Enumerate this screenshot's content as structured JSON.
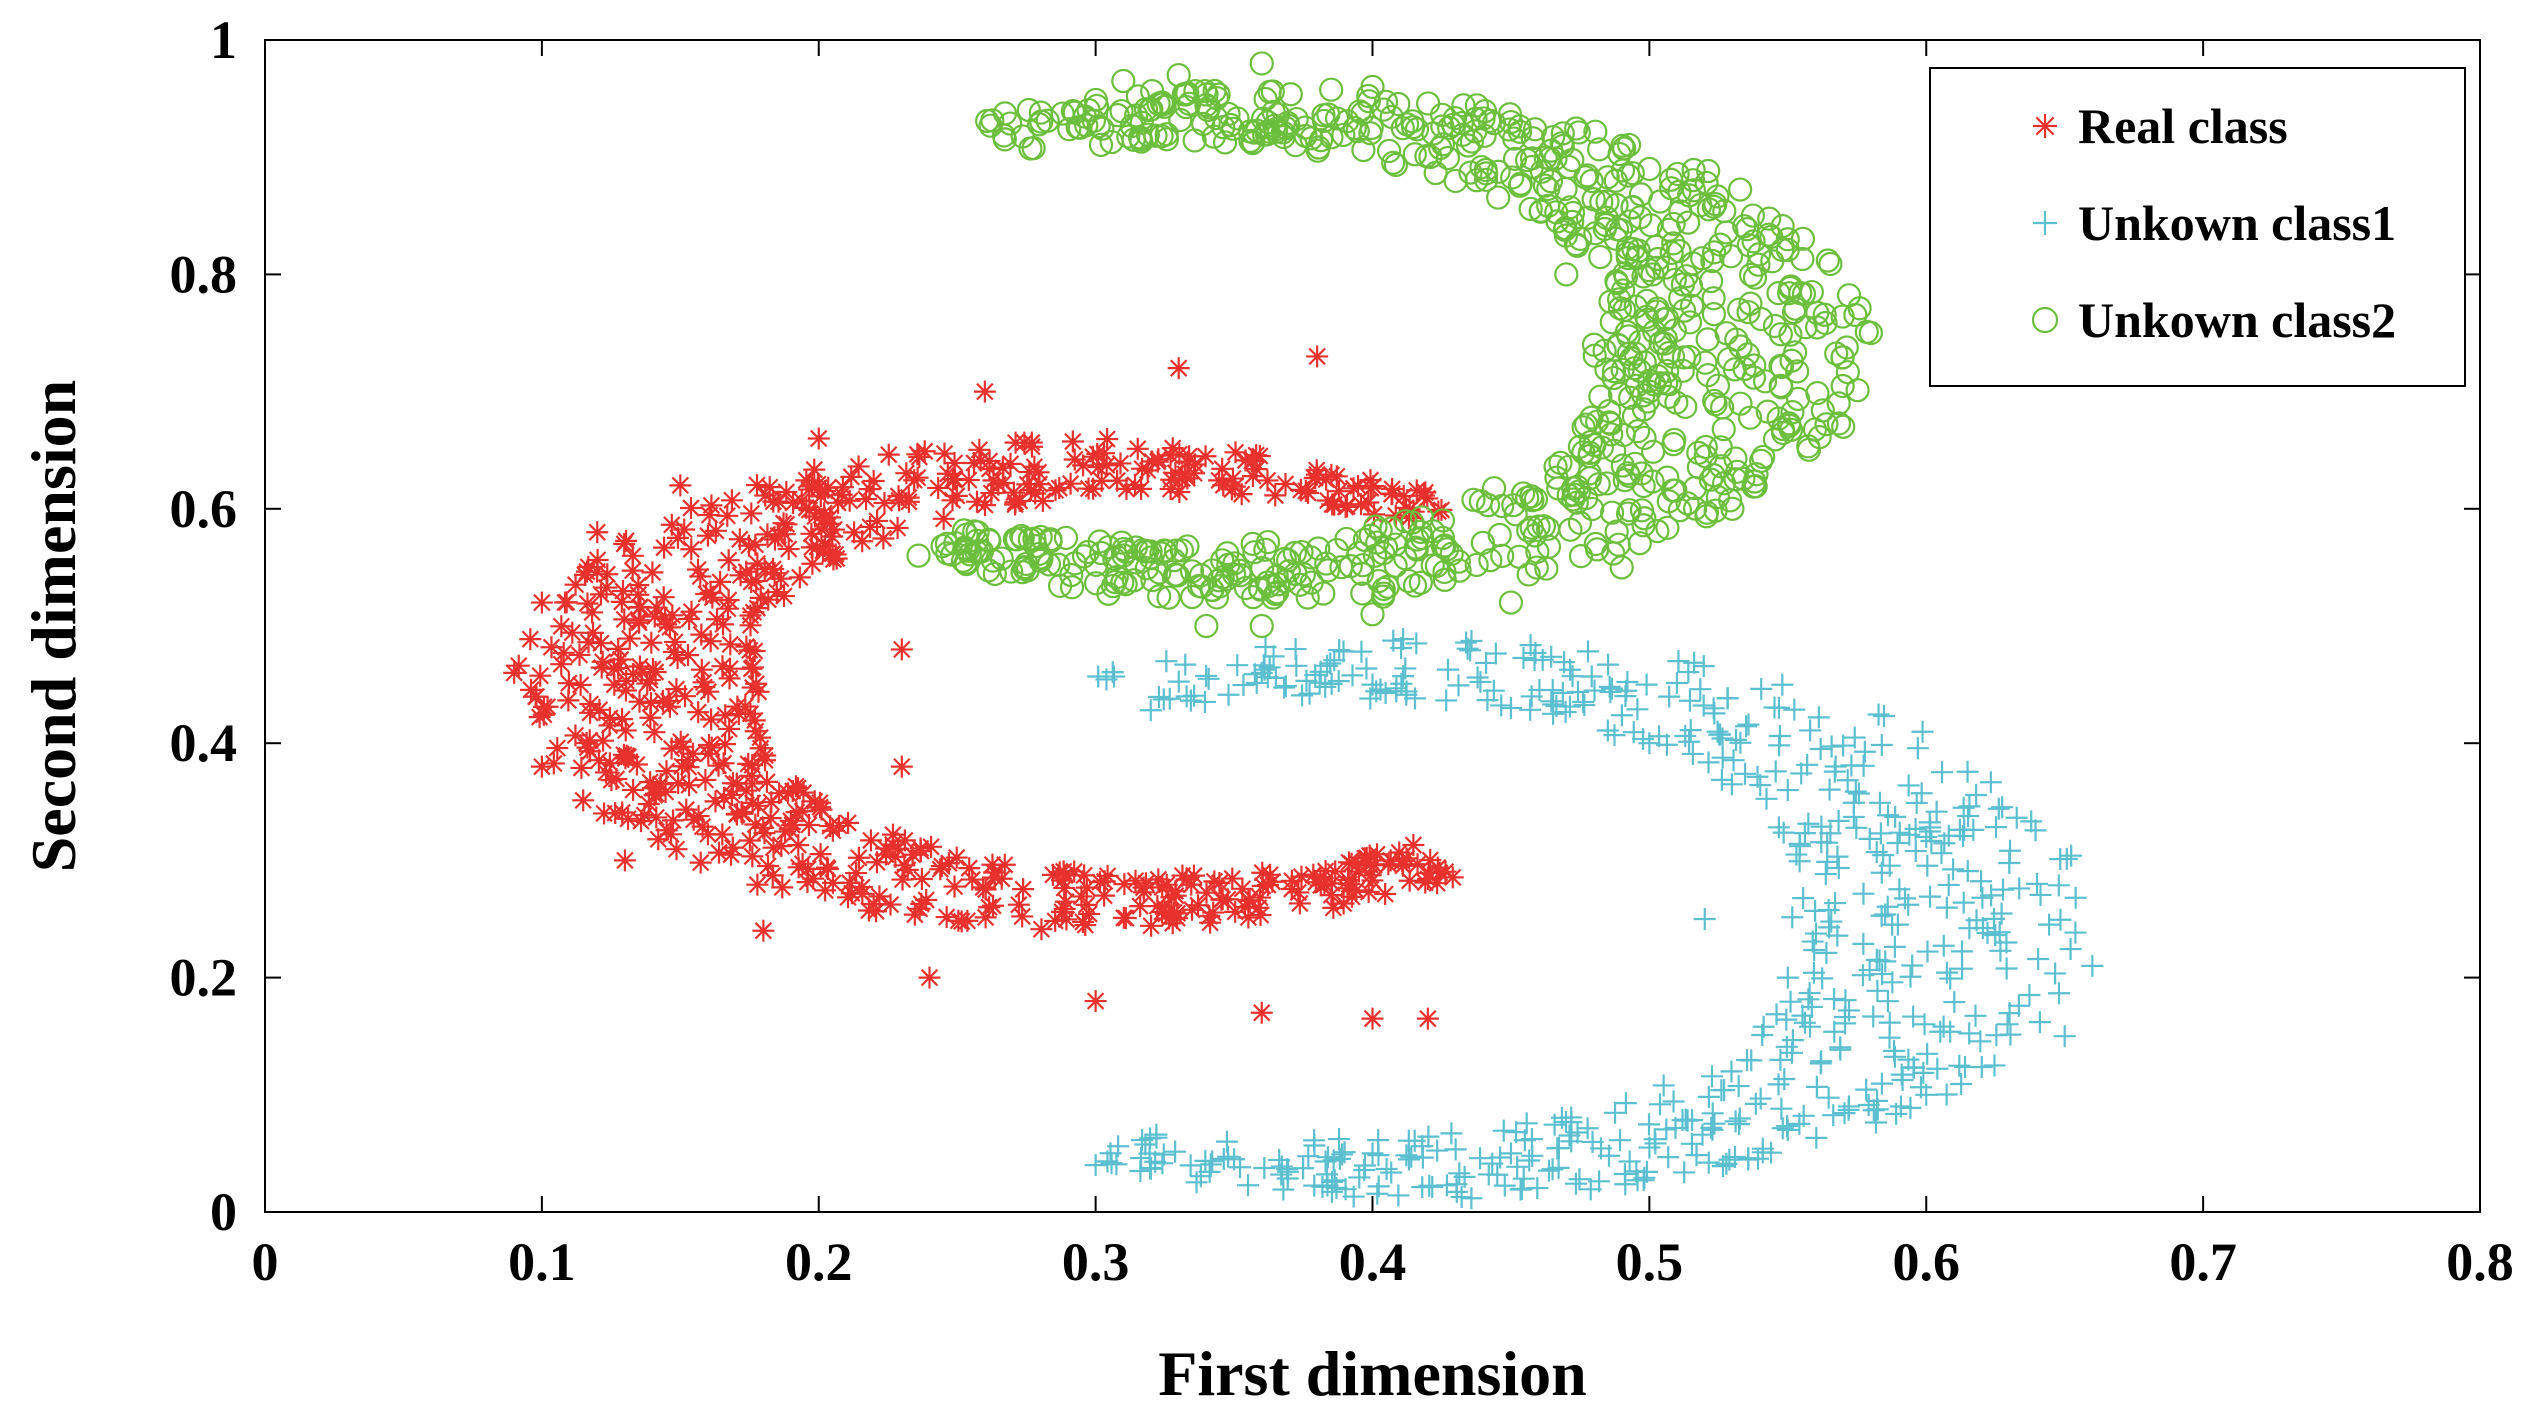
{
  "chart_data": {
    "type": "scatter",
    "title": "",
    "xlabel": "First dimension",
    "ylabel": "Second dimension",
    "xlim": [
      0,
      0.8
    ],
    "ylim": [
      0,
      1
    ],
    "xticks": [
      0,
      0.1,
      0.2,
      0.3,
      0.4,
      0.5,
      0.6,
      0.7,
      0.8
    ],
    "xtick_labels": [
      "0",
      "0.1",
      "0.2",
      "0.3",
      "0.4",
      "0.5",
      "0.6",
      "0.7",
      "0.8"
    ],
    "yticks": [
      0,
      0.2,
      0.4,
      0.6,
      0.8,
      1
    ],
    "ytick_labels": [
      "0",
      "0.2",
      "0.4",
      "0.6",
      "0.8",
      "1"
    ],
    "grid": false,
    "legend_position": "top-right",
    "series": [
      {
        "name": "Real class",
        "marker": "asterisk",
        "color": "#e8312d",
        "shape": "crescent-open-right",
        "center": [
          0.3,
          0.45
        ],
        "outer_radius": 0.21,
        "inner_radius": 0.12,
        "angle_range_deg": [
          50,
          310
        ],
        "point_count": 700,
        "sample_points": [
          [
            0.09,
            0.46
          ],
          [
            0.1,
            0.52
          ],
          [
            0.12,
            0.58
          ],
          [
            0.15,
            0.62
          ],
          [
            0.2,
            0.66
          ],
          [
            0.26,
            0.7
          ],
          [
            0.33,
            0.72
          ],
          [
            0.38,
            0.73
          ],
          [
            0.1,
            0.38
          ],
          [
            0.13,
            0.3
          ],
          [
            0.18,
            0.24
          ],
          [
            0.24,
            0.2
          ],
          [
            0.3,
            0.18
          ],
          [
            0.36,
            0.17
          ],
          [
            0.4,
            0.165
          ],
          [
            0.42,
            0.165
          ],
          [
            0.23,
            0.48
          ],
          [
            0.23,
            0.38
          ]
        ]
      },
      {
        "name": "Unkown class1",
        "marker": "plus",
        "color": "#5bbfd0",
        "shape": "crescent-open-left",
        "center": [
          0.42,
          0.25
        ],
        "outer_radius": 0.24,
        "inner_radius": 0.13,
        "angle_range_deg": [
          -120,
          120
        ],
        "point_count": 600,
        "sample_points": [
          [
            0.36,
            0.46
          ],
          [
            0.4,
            0.45
          ],
          [
            0.45,
            0.43
          ],
          [
            0.5,
            0.4
          ],
          [
            0.55,
            0.36
          ],
          [
            0.6,
            0.32
          ],
          [
            0.64,
            0.28
          ],
          [
            0.66,
            0.21
          ],
          [
            0.65,
            0.15
          ],
          [
            0.6,
            0.1
          ],
          [
            0.55,
            0.07
          ],
          [
            0.5,
            0.055
          ],
          [
            0.45,
            0.05
          ],
          [
            0.4,
            0.05
          ],
          [
            0.35,
            0.045
          ],
          [
            0.3,
            0.04
          ],
          [
            0.52,
            0.25
          ],
          [
            0.55,
            0.2
          ]
        ]
      },
      {
        "name": "Unkown class2",
        "marker": "circle",
        "color": "#6cbf3c",
        "shape": "crescent-open-left",
        "center": [
          0.36,
          0.74
        ],
        "outer_radius": 0.22,
        "inner_radius": 0.12,
        "angle_range_deg": [
          -125,
          118
        ],
        "point_count": 800,
        "sample_points": [
          [
            0.31,
            0.965
          ],
          [
            0.33,
            0.97
          ],
          [
            0.36,
            0.98
          ],
          [
            0.4,
            0.96
          ],
          [
            0.45,
            0.93
          ],
          [
            0.5,
            0.89
          ],
          [
            0.55,
            0.83
          ],
          [
            0.58,
            0.75
          ],
          [
            0.57,
            0.67
          ],
          [
            0.53,
            0.6
          ],
          [
            0.49,
            0.55
          ],
          [
            0.45,
            0.52
          ],
          [
            0.4,
            0.51
          ],
          [
            0.36,
            0.5
          ],
          [
            0.34,
            0.5
          ],
          [
            0.48,
            0.74
          ],
          [
            0.5,
            0.7
          ],
          [
            0.47,
            0.8
          ]
        ]
      }
    ]
  }
}
